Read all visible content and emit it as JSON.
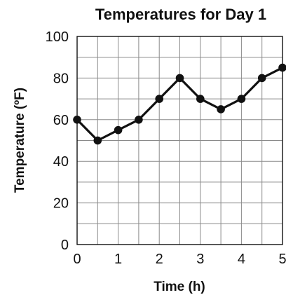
{
  "chart_data": {
    "type": "line",
    "title": "Temperatures for Day 1",
    "xlabel": "Time (h)",
    "ylabel": "Temperature (ºF)",
    "xlim": [
      0,
      5
    ],
    "ylim": [
      0,
      100
    ],
    "grid": true,
    "x_ticks": [
      "0",
      "1",
      "2",
      "3",
      "4",
      "5"
    ],
    "y_ticks": [
      "0",
      "20",
      "40",
      "60",
      "80",
      "100"
    ],
    "series": [
      {
        "x": [
          0,
          0.5,
          1,
          1.5,
          2,
          2.5,
          3,
          3.5,
          4,
          4.5,
          5
        ],
        "y": [
          60,
          50,
          55,
          60,
          70,
          80,
          70,
          65,
          70,
          80,
          85
        ]
      }
    ]
  }
}
